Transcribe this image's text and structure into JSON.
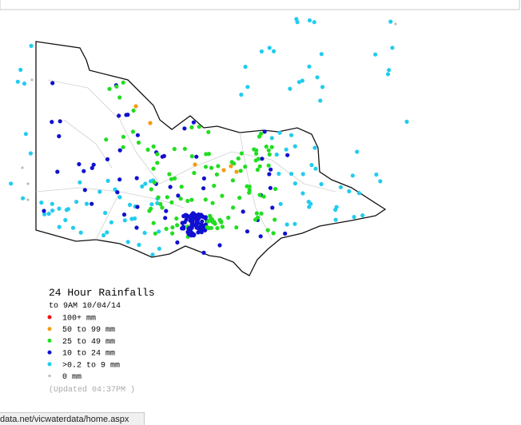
{
  "legend": {
    "title": "24 Hour Rainfalls",
    "subtitle": "to 9AM 10/04/14",
    "items": [
      {
        "label": "100+ mm",
        "color": "#ee1111"
      },
      {
        "label": "50  to 99 mm",
        "color": "#f39c12"
      },
      {
        "label": "25  to 49 mm",
        "color": "#22dd22"
      },
      {
        "label": "10  to 24 mm",
        "color": "#1010d0"
      },
      {
        "label": ">0.2 to 9 mm",
        "color": "#22ccee"
      },
      {
        "label": "0 mm",
        "color": "#bbbbbb"
      }
    ],
    "updated": "(Updated 04:37PM  )"
  },
  "status_bar": {
    "url": "data.net/vicwaterdata/home.aspx"
  }
}
